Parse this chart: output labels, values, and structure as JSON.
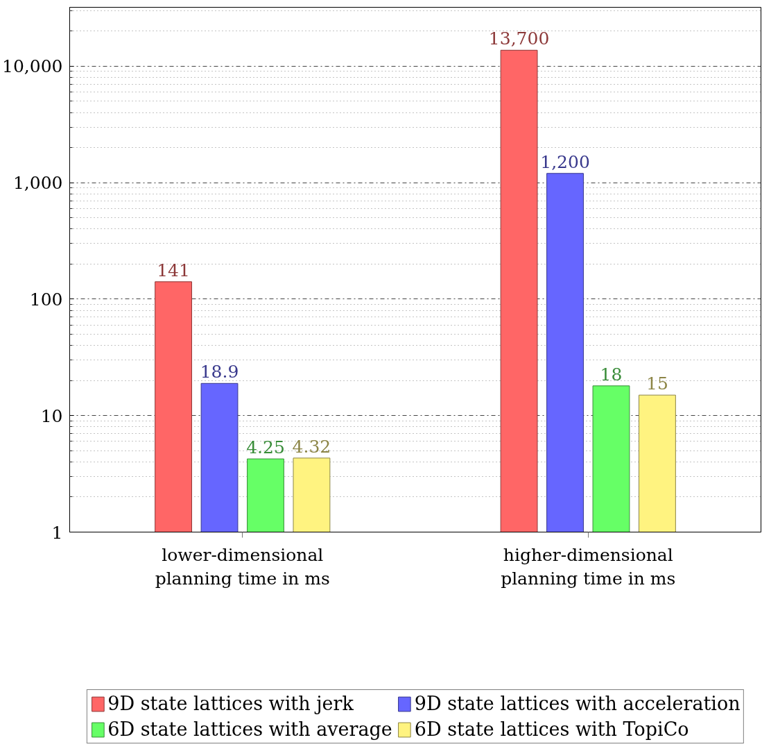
{
  "chart_data": {
    "type": "bar",
    "categories": [
      "lower-dimensional\nplanning time in ms",
      "higher-dimensional\nplanning time in ms"
    ],
    "series": [
      {
        "name": "9D state lattices with jerk",
        "color": "#ff6666",
        "values": [
          141,
          13700
        ],
        "value_labels": [
          "141",
          "13,700"
        ]
      },
      {
        "name": "9D state lattices with acceleration",
        "color": "#6666ff",
        "values": [
          18.9,
          1200
        ],
        "value_labels": [
          "18.9",
          "1,200"
        ]
      },
      {
        "name": "6D state lattices with average",
        "color": "#66ff66",
        "values": [
          4.25,
          18
        ],
        "value_labels": [
          "4.25",
          "18"
        ]
      },
      {
        "name": "6D state lattices with TopiCo",
        "color": "#fff380",
        "values": [
          4.32,
          15
        ],
        "value_labels": [
          "4.32",
          "15"
        ]
      }
    ],
    "log": true,
    "ylim": [
      1,
      32000
    ],
    "yticks": [
      1,
      10,
      100,
      {
        "value": 1000,
        "label": "1,000"
      },
      {
        "value": 10000,
        "label": "10,000"
      }
    ],
    "grid": "y",
    "legend": "bottom"
  }
}
